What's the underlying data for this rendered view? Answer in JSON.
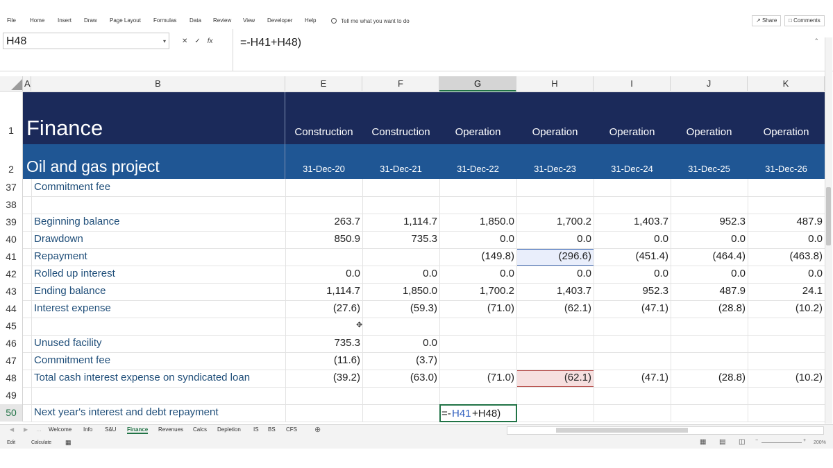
{
  "ribbon": {
    "tabs": [
      "File",
      "Home",
      "Insert",
      "Draw",
      "Page Layout",
      "Formulas",
      "Data",
      "Review",
      "View",
      "Developer",
      "Help"
    ],
    "tell_me": "Tell me what you want to do",
    "share": "Share",
    "comments": "Comments"
  },
  "formula_bar": {
    "name_box": "H48",
    "formula": "=-H41+H48)"
  },
  "columns": [
    "A",
    "B",
    "E",
    "F",
    "G",
    "H",
    "I",
    "J",
    "K"
  ],
  "title": "Finance",
  "subtitle": "Oil and gas project",
  "phases": [
    "Construction",
    "Construction",
    "Operation",
    "Operation",
    "Operation",
    "Operation",
    "Operation"
  ],
  "dates": [
    "31-Dec-20",
    "31-Dec-21",
    "31-Dec-22",
    "31-Dec-23",
    "31-Dec-24",
    "31-Dec-25",
    "31-Dec-26"
  ],
  "row_numbers": [
    "1",
    "2",
    "37",
    "38",
    "39",
    "40",
    "41",
    "42",
    "43",
    "44",
    "45",
    "46",
    "47",
    "48",
    "49",
    "50"
  ],
  "rows": [
    {
      "label": "Commitment fee",
      "values": [
        "",
        "",
        "",
        "",
        "",
        "",
        ""
      ]
    },
    {
      "label": "",
      "values": [
        "",
        "",
        "",
        "",
        "",
        "",
        ""
      ]
    },
    {
      "label": "Beginning balance",
      "values": [
        "263.7",
        "1,114.7",
        "1,850.0",
        "1,700.2",
        "1,403.7",
        "952.3",
        "487.9"
      ]
    },
    {
      "label": "Drawdown",
      "values": [
        "850.9",
        "735.3",
        "0.0",
        "0.0",
        "0.0",
        "0.0",
        "0.0"
      ]
    },
    {
      "label": "Repayment",
      "values": [
        "",
        "",
        "(149.8)",
        "(296.6)",
        "(451.4)",
        "(464.4)",
        "(463.8)"
      ]
    },
    {
      "label": "Rolled up interest",
      "values": [
        "0.0",
        "0.0",
        "0.0",
        "0.0",
        "0.0",
        "0.0",
        "0.0"
      ]
    },
    {
      "label": " Ending balance",
      "values": [
        "1,114.7",
        "1,850.0",
        "1,700.2",
        "1,403.7",
        "952.3",
        "487.9",
        "24.1"
      ]
    },
    {
      "label": "Interest expense",
      "values": [
        "(27.6)",
        "(59.3)",
        "(71.0)",
        "(62.1)",
        "(47.1)",
        "(28.8)",
        "(10.2)"
      ]
    },
    {
      "label": "",
      "values": [
        "",
        "",
        "",
        "",
        "",
        "",
        ""
      ]
    },
    {
      "label": "Unused facility",
      "values": [
        "735.3",
        "0.0",
        "",
        "",
        "",
        "",
        ""
      ]
    },
    {
      "label": "Commitment fee",
      "values": [
        "(11.6)",
        "(3.7)",
        "",
        "",
        "",
        "",
        ""
      ]
    },
    {
      "label": "Total cash interest expense on syndicated loan",
      "values": [
        "(39.2)",
        "(63.0)",
        "(71.0)",
        "(62.1)",
        "(47.1)",
        "(28.8)",
        "(10.2)"
      ]
    },
    {
      "label": "",
      "values": [
        "",
        "",
        "",
        "",
        "",
        "",
        ""
      ]
    },
    {
      "label": "Next year's interest and debt repayment",
      "values": [
        "",
        "",
        "",
        "",
        "",
        "",
        ""
      ]
    }
  ],
  "editing_cell": {
    "prefix": "=-",
    "ref1": "H41",
    "rest": "+H48)"
  },
  "sheet_tabs": [
    "Welcome",
    "Info",
    "S&U",
    "Finance",
    "Revenues",
    "Calcs",
    "Depletion",
    "IS",
    "BS",
    "CFS"
  ],
  "active_sheet": "Finance",
  "status": {
    "mode": "Edit",
    "calculate": "Calculate",
    "zoom": "200%"
  },
  "colors": {
    "banner_dark": "#1b2a5a",
    "banner_blue": "#1f5694",
    "label": "#1f4e79",
    "excel_green": "#217346"
  }
}
